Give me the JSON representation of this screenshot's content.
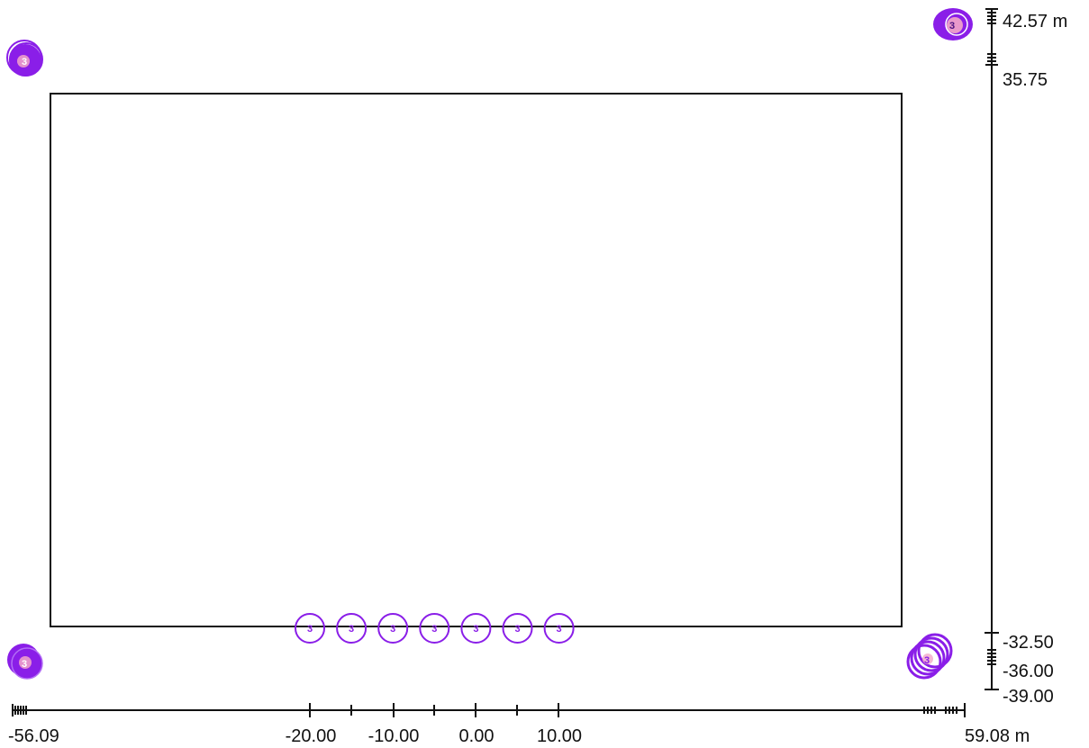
{
  "plan": {
    "marker_color": "#8a1ee8",
    "marker_fill_light": "#c58cf5",
    "marker_accent": "#f3a6c8",
    "line_color": "#111111"
  },
  "x_axis": {
    "min_label": "-56.09",
    "max_label": "59.08 m",
    "labels": [
      "-20.00",
      "-10.00",
      "0.00",
      "10.00"
    ]
  },
  "y_axis": {
    "top_label": "42.57 m",
    "upper_label": "35.75",
    "labels": [
      "-32.50",
      "-36.00",
      "-39.00"
    ]
  },
  "markers": {
    "row_label": "3",
    "row_count": 7,
    "corner_tl": "3",
    "corner_tr": "3",
    "corner_bl": "3",
    "corner_br": "3"
  }
}
